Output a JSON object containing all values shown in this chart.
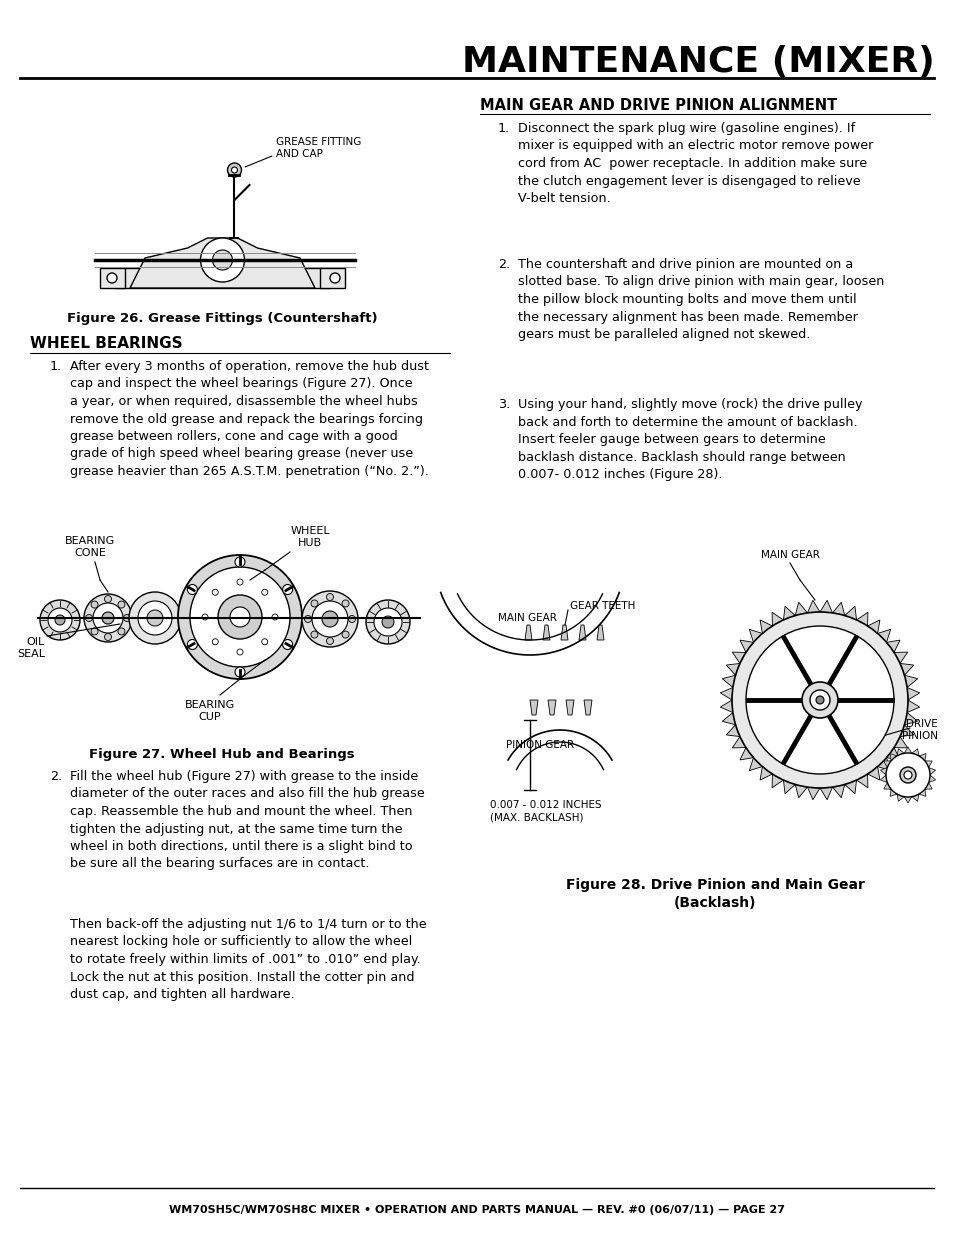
{
  "page_title": "MAINTENANCE (MIXER)",
  "footer_text": "WM70SH5C/WM70SH8C MIXER • OPERATION AND PARTS MANUAL — REV. #0 (06/07/11) — PAGE 27",
  "section1_title": "WHEEL BEARINGS",
  "section2_title": "MAIN GEAR AND DRIVE PINION ALIGNMENT",
  "fig26_caption": "Figure 26. Grease Fittings (Countershaft)",
  "fig27_caption": "Figure 27. Wheel Hub and Bearings",
  "fig28_caption": "Figure 28. Drive Pinion and Main Gear\n(Backlash)",
  "wb_text1_num": "1.",
  "wb_text1": "After every 3 months of operation, remove the hub dust\ncap and inspect the wheel bearings (Figure 27). Once\na year, or when required, disassemble the wheel hubs\nremove the old grease and repack the bearings forcing\ngrease between rollers, cone and cage with a good\ngrade of high speed wheel bearing grease (never use\ngrease heavier than 265 A.S.T.M. penetration (“No. 2.”).",
  "wb_text2_num": "2.",
  "wb_text2": "Fill the wheel hub (Figure 27) with grease to the inside\ndiameter of the outer races and also fill the hub grease\ncap. Reassemble the hub and mount the wheel. Then\ntighten the adjusting nut, at the same time turn the\nwheel in both directions, until there is a slight bind to\nbe sure all the bearing surfaces are in contact.",
  "wb_text3": "Then back-off the adjusting nut 1/6 to 1/4 turn or to the\nnearest locking hole or sufficiently to allow the wheel\nto rotate freely within limits of .001” to .010” end play.\nLock the nut at this position. Install the cotter pin and\ndust cap, and tighten all hardware.",
  "mg_text1_num": "1.",
  "mg_text1": "Disconnect the spark plug wire (gasoline engines). If\nmixer is equipped with an electric motor remove power\ncord from AC  power receptacle. In addition make sure\nthe clutch engagement lever is disengaged to relieve\nV-belt tension.",
  "mg_text2_num": "2.",
  "mg_text2": "The countershaft and drive pinion are mounted on a\nslotted base. To align drive pinion with main gear, loosen\nthe pillow block mounting bolts and move them until\nthe necessary alignment has been made. Remember\ngears must be paralleled aligned not skewed.",
  "mg_text3_num": "3.",
  "mg_text3": "Using your hand, slightly move (rock) the drive pulley\nback and forth to determine the amount of backlash.\nInsert feeler gauge between gears to determine\nbacklash distance. Backlash should range between\n0.007- 0.012 inches (Figure 28).",
  "fig28_lbl_maingear_top": "MAIN GEAR",
  "fig28_lbl_maingear_left": "MAIN GEAR",
  "fig28_lbl_gearteeth": "GEAR TEETH",
  "fig28_lbl_drive": "DRIVE\nPINION",
  "fig28_lbl_pinion": "PINION GEAR",
  "fig28_lbl_backlash": "0.007 - 0.012 INCHES\n(MAX. BACKLASH)",
  "fig27_lbl_bearing_cone": "BEARING\nCONE",
  "fig27_lbl_wheel_hub": "WHEEL\nHUB",
  "fig27_lbl_oil_seal": "OIL\nSEAL",
  "fig27_lbl_bearing_cup": "BEARING\nCUP",
  "fig26_lbl_grease": "GREASE FITTING\nAND CAP",
  "bg_color": "#ffffff",
  "text_color": "#000000"
}
